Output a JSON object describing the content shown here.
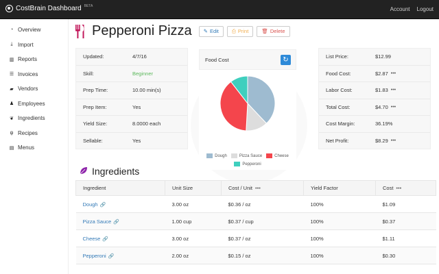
{
  "navbar": {
    "brand": "CostBrain Dashboard",
    "beta": "BETA",
    "links": [
      "Account",
      "Logout"
    ]
  },
  "sidebar": {
    "items": [
      {
        "label": "Overview",
        "icon": "dashboard-icon"
      },
      {
        "label": "Import",
        "icon": "download-icon"
      },
      {
        "label": "Reports",
        "icon": "bar-chart-icon"
      },
      {
        "label": "Invoices",
        "icon": "list-icon"
      },
      {
        "label": "Vendors",
        "icon": "truck-icon"
      },
      {
        "label": "Employees",
        "icon": "person-icon"
      },
      {
        "label": "Ingredients",
        "icon": "leaf-icon"
      },
      {
        "label": "Recipes",
        "icon": "cutlery-icon"
      },
      {
        "label": "Menus",
        "icon": "book-icon"
      }
    ]
  },
  "recipe": {
    "title": "Pepperoni Pizza",
    "buttons": {
      "edit": "Edit",
      "print": "Print",
      "delete": "Delete"
    }
  },
  "details": [
    {
      "label": "Updated:",
      "value": "4/7/16"
    },
    {
      "label": "Skill:",
      "value": "Beginner"
    },
    {
      "label": "Prep Time:",
      "value": "10.00 min(s)"
    },
    {
      "label": "Prep Item:",
      "value": "Yes"
    },
    {
      "label": "Yield Size:",
      "value": "8.0000 each"
    },
    {
      "label": "Sellable:",
      "value": "Yes"
    }
  ],
  "food_cost": {
    "title": "Food Cost",
    "legend": [
      "Dough",
      "Pizza Sauce",
      "Cheese",
      "Pepperoni"
    ],
    "colors": [
      "#9ebbd0",
      "#dddddd",
      "#f4454c",
      "#3fcfbe"
    ]
  },
  "chart_data": {
    "type": "pie",
    "categories": [
      "Dough",
      "Pizza Sauce",
      "Cheese",
      "Pepperoni"
    ],
    "values": [
      1.09,
      0.37,
      1.11,
      0.3
    ],
    "title": "Food Cost"
  },
  "costs": [
    {
      "label": "List Price:",
      "value": "$12.99",
      "dots": ""
    },
    {
      "label": "Food Cost:",
      "value": "$2.87",
      "dots": "•••"
    },
    {
      "label": "Labor Cost:",
      "value": "$1.83",
      "dots": "•••"
    },
    {
      "label": "Total Cost:",
      "value": "$4.70",
      "dots": "•••"
    },
    {
      "label": "Cost Margin:",
      "value": "36.19%",
      "dots": ""
    },
    {
      "label": "Net Profit:",
      "value": "$8.29",
      "dots": "•••"
    }
  ],
  "ingredients": {
    "heading": "Ingredients",
    "columns": [
      "Ingredient",
      "Unit Size",
      "Cost / Unit",
      "Yield Factor",
      "Cost"
    ],
    "column_dots": [
      "",
      "",
      "•••",
      "",
      "•••"
    ],
    "rows": [
      {
        "name": "Dough",
        "unit_size": "3.00 oz",
        "cost_unit": "$0.36 / oz",
        "yield": "100%",
        "cost": "$1.09"
      },
      {
        "name": "Pizza Sauce",
        "unit_size": "1.00 cup",
        "cost_unit": "$0.37 / cup",
        "yield": "100%",
        "cost": "$0.37"
      },
      {
        "name": "Cheese",
        "unit_size": "3.00 oz",
        "cost_unit": "$0.37 / oz",
        "yield": "100%",
        "cost": "$1.11"
      },
      {
        "name": "Pepperoni",
        "unit_size": "2.00 oz",
        "cost_unit": "$0.15 / oz",
        "yield": "100%",
        "cost": "$0.30"
      }
    ]
  }
}
